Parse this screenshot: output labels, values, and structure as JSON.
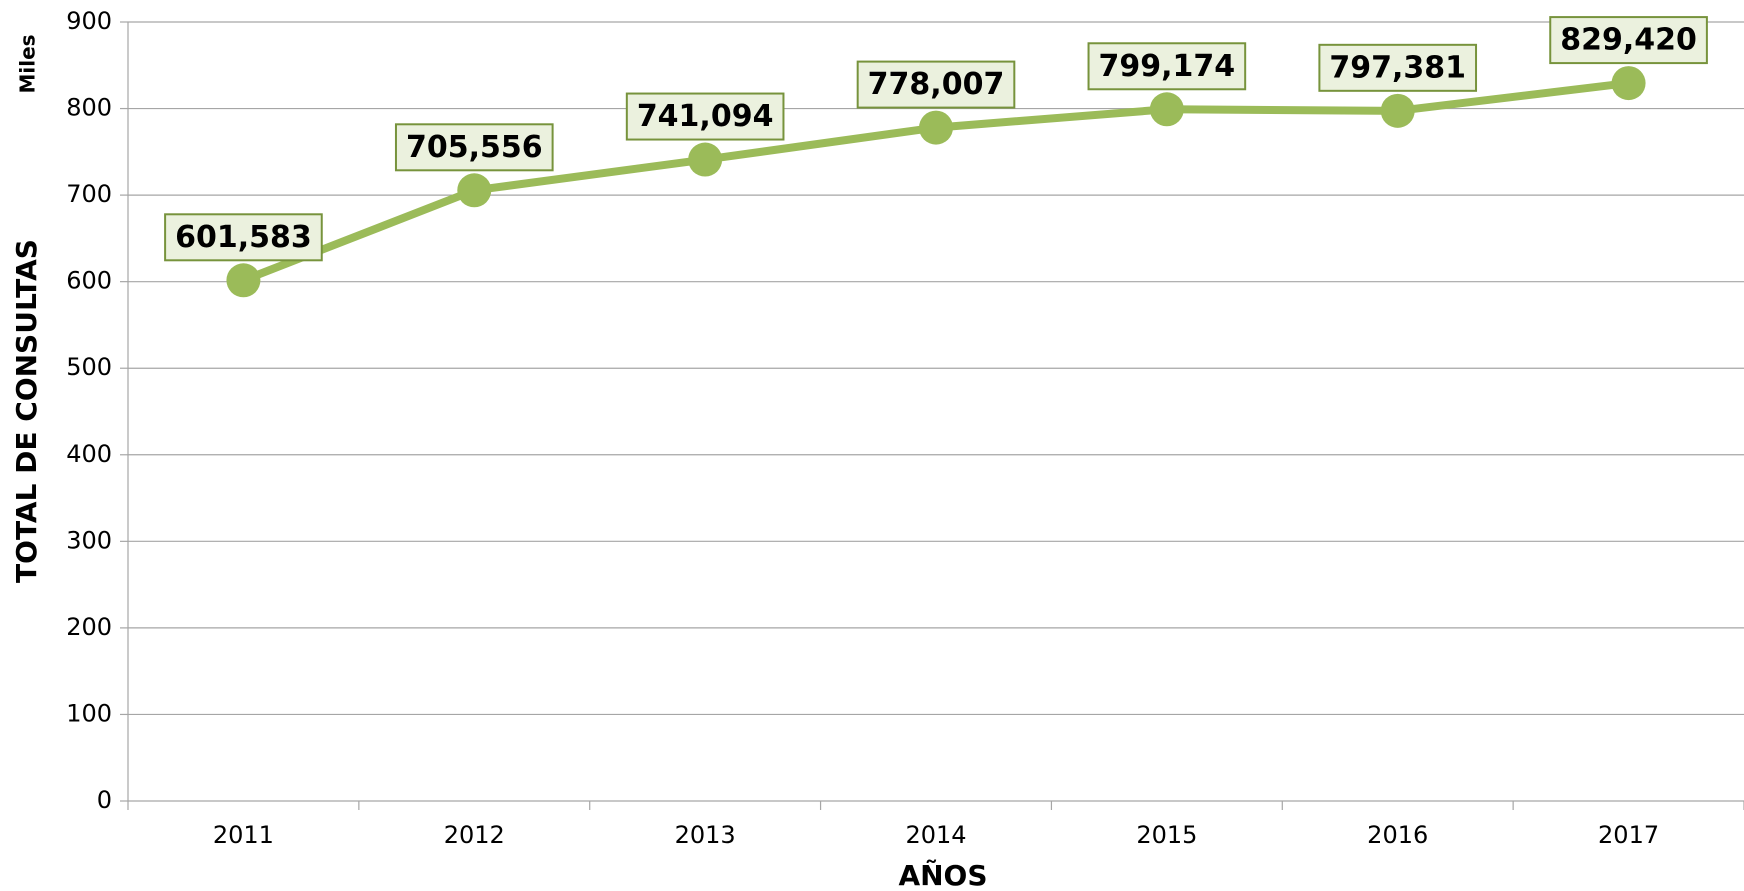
{
  "chart_data": {
    "type": "line",
    "xlabel": "AÑOS",
    "ylabel": "TOTAL DE CONSULTAS",
    "yunit": "Miles",
    "categories": [
      "2011",
      "2012",
      "2013",
      "2014",
      "2015",
      "2016",
      "2017"
    ],
    "values": [
      601.583,
      705.556,
      741.094,
      778.007,
      799.174,
      797.381,
      829.42
    ],
    "value_labels": [
      "601,583",
      "705,556",
      "741,094",
      "778,007",
      "799,174",
      "797,381",
      "829,420"
    ],
    "color": "#9bbb59",
    "ylim": [
      0,
      900
    ],
    "yticks": [
      0,
      100,
      200,
      300,
      400,
      500,
      600,
      700,
      800,
      900
    ],
    "grid": true
  }
}
